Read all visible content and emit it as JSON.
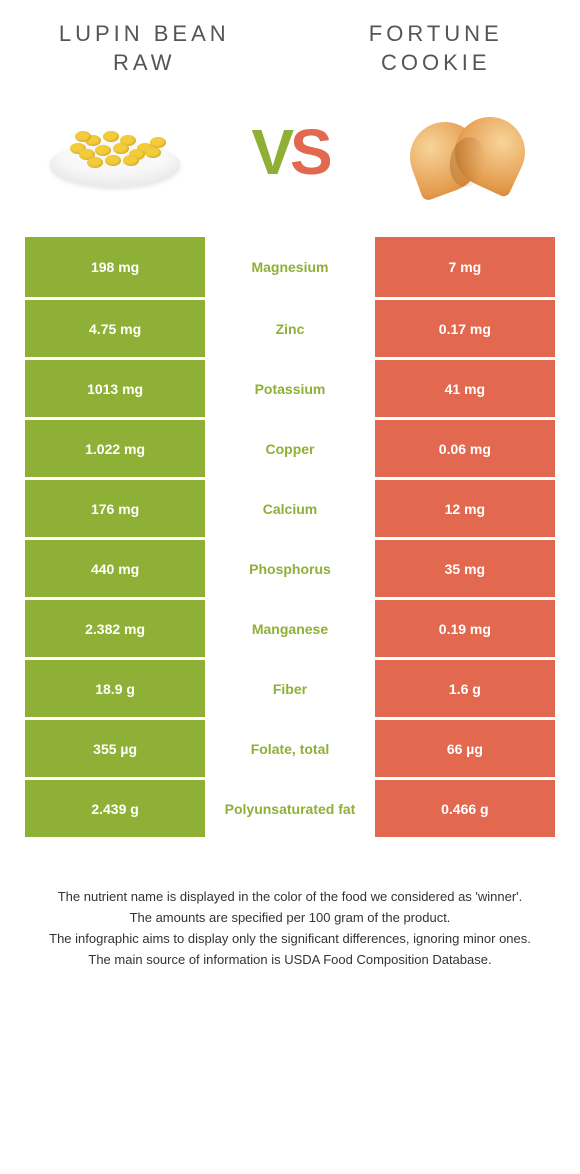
{
  "header": {
    "left_title": "LUPIN BEAN\nRAW",
    "right_title": "FORTUNE\nCOOKIE"
  },
  "vs": {
    "v": "V",
    "s": "S"
  },
  "colors": {
    "left": "#8fb036",
    "right": "#e2694f",
    "v_color": "#8fb036",
    "s_color": "#e2694f"
  },
  "rows": [
    {
      "left": "198 mg",
      "label": "Magnesium",
      "right": "7 mg",
      "winner": "left"
    },
    {
      "left": "4.75 mg",
      "label": "Zinc",
      "right": "0.17 mg",
      "winner": "left"
    },
    {
      "left": "1013 mg",
      "label": "Potassium",
      "right": "41 mg",
      "winner": "left"
    },
    {
      "left": "1.022 mg",
      "label": "Copper",
      "right": "0.06 mg",
      "winner": "left"
    },
    {
      "left": "176 mg",
      "label": "Calcium",
      "right": "12 mg",
      "winner": "left"
    },
    {
      "left": "440 mg",
      "label": "Phosphorus",
      "right": "35 mg",
      "winner": "left"
    },
    {
      "left": "2.382 mg",
      "label": "Manganese",
      "right": "0.19 mg",
      "winner": "left"
    },
    {
      "left": "18.9 g",
      "label": "Fiber",
      "right": "1.6 g",
      "winner": "left"
    },
    {
      "left": "355 µg",
      "label": "Folate, total",
      "right": "66 µg",
      "winner": "left"
    },
    {
      "left": "2.439 g",
      "label": "Polyunsaturated fat",
      "right": "0.466 g",
      "winner": "left"
    }
  ],
  "footer": [
    "The nutrient name is displayed in the color of the food we considered as 'winner'.",
    "The amounts are specified per 100 gram of the product.",
    "The infographic aims to display only the significant differences, ignoring minor ones.",
    "The main source of information is USDA Food Composition Database."
  ]
}
